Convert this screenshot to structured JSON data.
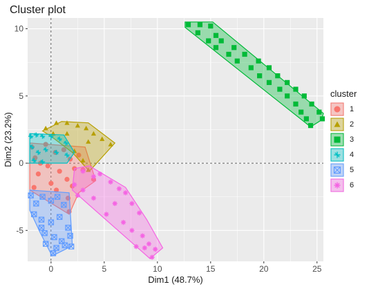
{
  "chart_data": {
    "type": "scatter",
    "title": "Cluster plot",
    "xlabel": "Dim1 (48.7%)",
    "ylabel": "Dim2 (23.2%)",
    "xlim": [
      -2.2,
      25.6
    ],
    "ylim": [
      -7.3,
      10.8
    ],
    "xticks": [
      0,
      5,
      10,
      15,
      20,
      25
    ],
    "yticks": [
      -5,
      0,
      5,
      10
    ],
    "grid": true,
    "legend": {
      "title": "cluster",
      "position": "right"
    },
    "series": [
      {
        "name": "1",
        "color": "#F8766D",
        "shape": "circle",
        "points": [
          [
            -1.8,
            1.2
          ],
          [
            -1.5,
            0.4
          ],
          [
            -1.2,
            -0.8
          ],
          [
            -1.6,
            -1.8
          ],
          [
            -0.5,
            1.4
          ],
          [
            -0.3,
            -0.2
          ],
          [
            0,
            -1.5
          ],
          [
            0.4,
            0.8
          ],
          [
            0.8,
            -0.6
          ],
          [
            1.2,
            1.0
          ],
          [
            1.5,
            -1.2
          ],
          [
            1.8,
            0.3
          ],
          [
            2.2,
            -0.4
          ],
          [
            2.6,
            0.6
          ],
          [
            2.0,
            -1.7
          ],
          [
            1.6,
            -2.6
          ],
          [
            1.7,
            -3.6
          ],
          [
            -1.0,
            0.0
          ],
          [
            0.5,
            -2.0
          ],
          [
            3.0,
            -0.5
          ],
          [
            4.0,
            -1.2
          ]
        ],
        "hull": [
          [
            -2.0,
            1.5
          ],
          [
            3.2,
            1.2
          ],
          [
            4.2,
            -1.3
          ],
          [
            2.6,
            -2.2
          ],
          [
            1.7,
            -3.8
          ],
          [
            -2.0,
            -2.0
          ]
        ]
      },
      {
        "name": "2",
        "color": "#B79F00",
        "shape": "triangle",
        "points": [
          [
            -0.5,
            2.6
          ],
          [
            0.5,
            3.0
          ],
          [
            1.5,
            3.0
          ],
          [
            2.5,
            2.8
          ],
          [
            3.3,
            2.6
          ],
          [
            4.0,
            2.2
          ],
          [
            4.8,
            1.8
          ],
          [
            5.6,
            1.4
          ],
          [
            3.5,
            1.6
          ],
          [
            2.2,
            0.9
          ],
          [
            3.0,
            0.2
          ],
          [
            3.5,
            -0.5
          ],
          [
            1.5,
            2.2
          ],
          [
            0.2,
            2.2
          ]
        ],
        "hull": [
          [
            -0.8,
            2.4
          ],
          [
            1.0,
            3.1
          ],
          [
            3.5,
            3.0
          ],
          [
            6.0,
            1.5
          ],
          [
            3.6,
            -0.6
          ],
          [
            2.0,
            0.8
          ],
          [
            0.0,
            2.0
          ]
        ]
      },
      {
        "name": "3",
        "color": "#00BA38",
        "shape": "square",
        "points": [
          [
            12.9,
            10.3
          ],
          [
            14.0,
            10.3
          ],
          [
            15.0,
            10.2
          ],
          [
            13.8,
            9.7
          ],
          [
            15.5,
            9.5
          ],
          [
            14.8,
            9.1
          ],
          [
            16.0,
            9.1
          ],
          [
            15.5,
            8.6
          ],
          [
            17.2,
            8.6
          ],
          [
            16.7,
            8.1
          ],
          [
            18.2,
            8.1
          ],
          [
            17.5,
            7.6
          ],
          [
            19.5,
            7.6
          ],
          [
            18.8,
            7.1
          ],
          [
            20.5,
            7.1
          ],
          [
            19.6,
            6.5
          ],
          [
            21.3,
            6.5
          ],
          [
            20.5,
            6.0
          ],
          [
            22.2,
            6.0
          ],
          [
            21.5,
            5.5
          ],
          [
            23.0,
            5.5
          ],
          [
            22.2,
            5.0
          ],
          [
            23.8,
            5.0
          ],
          [
            23.0,
            4.4
          ],
          [
            24.5,
            4.4
          ],
          [
            23.5,
            3.8
          ],
          [
            25.2,
            3.8
          ],
          [
            24.0,
            3.3
          ],
          [
            25.5,
            3.3
          ],
          [
            24.4,
            2.8
          ]
        ],
        "hull": [
          [
            12.6,
            10.5
          ],
          [
            15.2,
            10.5
          ],
          [
            25.6,
            3.7
          ],
          [
            25.4,
            3.2
          ],
          [
            24.4,
            2.7
          ],
          [
            12.6,
            10.1
          ]
        ]
      },
      {
        "name": "4",
        "color": "#00BFC4",
        "shape": "star",
        "points": [
          [
            -1.9,
            2.0
          ],
          [
            -1.4,
            2.1
          ],
          [
            -0.8,
            2.0
          ],
          [
            0,
            2.0
          ],
          [
            0.8,
            1.8
          ],
          [
            1.4,
            1.5
          ],
          [
            -1.8,
            1.2
          ],
          [
            -1.2,
            0.8
          ],
          [
            -0.5,
            1.0
          ],
          [
            0.5,
            0.8
          ],
          [
            1.5,
            0.6
          ],
          [
            -1.6,
            0.2
          ],
          [
            -0.8,
            0.1
          ]
        ],
        "hull": [
          [
            -2.0,
            2.2
          ],
          [
            1.2,
            2.1
          ],
          [
            2.2,
            0.8
          ],
          [
            1.5,
            0.0
          ],
          [
            -2.0,
            0.0
          ]
        ]
      },
      {
        "name": "5",
        "color": "#619CFF",
        "shape": "x-square",
        "points": [
          [
            -1.9,
            -2.4
          ],
          [
            -1.4,
            -3.0
          ],
          [
            -0.8,
            -2.5
          ],
          [
            0,
            -2.8
          ],
          [
            0.6,
            -2.5
          ],
          [
            1.2,
            -3.1
          ],
          [
            -1.6,
            -3.8
          ],
          [
            -0.9,
            -4.2
          ],
          [
            0,
            -4.4
          ],
          [
            0.8,
            -4.0
          ],
          [
            1.6,
            -4.8
          ],
          [
            -0.6,
            -5.2
          ],
          [
            0.3,
            -5.5
          ],
          [
            1.0,
            -5.8
          ],
          [
            1.8,
            -5.4
          ],
          [
            -0.5,
            -6.0
          ],
          [
            0.5,
            -6.3
          ],
          [
            1.3,
            -6.1
          ],
          [
            1.9,
            -6.2
          ],
          [
            -0.9,
            -4.8
          ],
          [
            0.2,
            -6.7
          ]
        ],
        "hull": [
          [
            -2.0,
            -2.0
          ],
          [
            1.7,
            -2.2
          ],
          [
            2.0,
            -6.1
          ],
          [
            1.6,
            -6.3
          ],
          [
            0.1,
            -6.9
          ],
          [
            -1.0,
            -5.2
          ],
          [
            -2.0,
            -3.5
          ]
        ]
      },
      {
        "name": "6",
        "color": "#F564E3",
        "shape": "asterisk",
        "points": [
          [
            3.0,
            -0.6
          ],
          [
            4.0,
            -1.0
          ],
          [
            4.6,
            -0.8
          ],
          [
            5.6,
            -1.4
          ],
          [
            6.4,
            -1.9
          ],
          [
            7.0,
            -2.2
          ],
          [
            7.6,
            -3.0
          ],
          [
            8.3,
            -3.7
          ],
          [
            6.0,
            -3.0
          ],
          [
            5.2,
            -3.8
          ],
          [
            6.8,
            -4.4
          ],
          [
            7.6,
            -5.0
          ],
          [
            8.6,
            -5.4
          ],
          [
            9.2,
            -6.0
          ],
          [
            8.8,
            -6.3
          ],
          [
            9.8,
            -6.4
          ],
          [
            8.0,
            -6.2
          ],
          [
            4.0,
            -2.6
          ],
          [
            3.0,
            -2.0
          ],
          [
            2.2,
            -1.6
          ],
          [
            9.5,
            -7.0
          ],
          [
            2.5,
            -2.4
          ]
        ],
        "hull": [
          [
            2.2,
            -0.4
          ],
          [
            3.6,
            -0.2
          ],
          [
            7.0,
            -1.8
          ],
          [
            9.0,
            -4.2
          ],
          [
            10.5,
            -6.3
          ],
          [
            9.3,
            -7.1
          ],
          [
            2.0,
            -2.0
          ]
        ]
      }
    ]
  }
}
